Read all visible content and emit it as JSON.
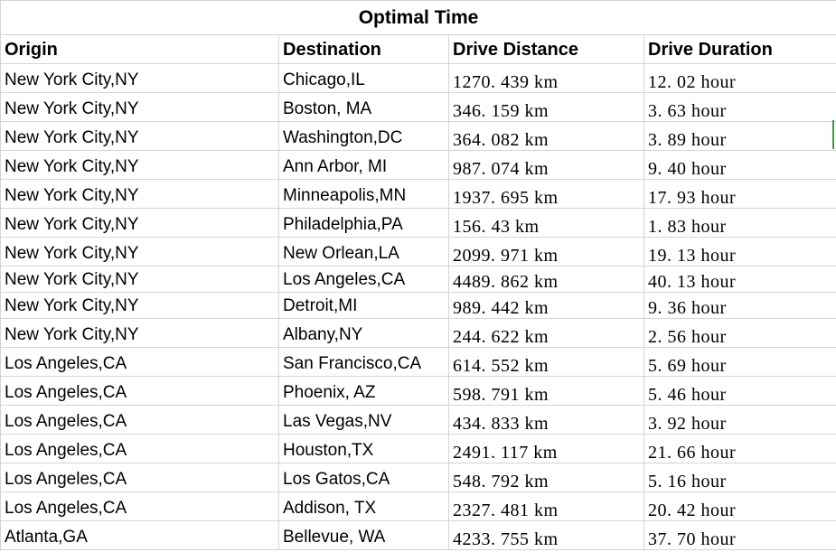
{
  "sheet": {
    "title": "Optimal Time",
    "headers": [
      "Origin",
      "Destination",
      "Drive Distance",
      "Drive Duration"
    ],
    "rows": [
      {
        "origin": "New York City,NY",
        "destination": "Chicago,IL",
        "distance": "1270. 439  km",
        "duration": "12. 02  hour"
      },
      {
        "origin": "New York City,NY",
        "destination": "Boston, MA",
        "distance": "346. 159  km",
        "duration": "3. 63  hour"
      },
      {
        "origin": "New York City,NY",
        "destination": "Washington,DC",
        "distance": "364. 082  km",
        "duration": "3. 89  hour"
      },
      {
        "origin": "New York City,NY",
        "destination": "Ann Arbor, MI",
        "distance": "987. 074  km",
        "duration": "9. 40  hour"
      },
      {
        "origin": "New York City,NY",
        "destination": "Minneapolis,MN",
        "distance": "1937. 695  km",
        "duration": "17. 93  hour"
      },
      {
        "origin": "New York City,NY",
        "destination": "Philadelphia,PA",
        "distance": "156. 43  km",
        "duration": "1. 83  hour"
      },
      {
        "origin": "New York City,NY",
        "destination": "New Orlean,LA",
        "distance": "2099. 971  km",
        "duration": "19. 13  hour"
      },
      {
        "origin": "New York City,NY",
        "destination": "Los Angeles,CA",
        "distance": "4489. 862  km",
        "duration": "40. 13  hour"
      },
      {
        "origin": "New York City,NY",
        "destination": "Detroit,MI",
        "distance": "989. 442  km",
        "duration": "9. 36  hour"
      },
      {
        "origin": "New York City,NY",
        "destination": "Albany,NY",
        "distance": "244. 622  km",
        "duration": "2. 56  hour"
      },
      {
        "origin": "Los Angeles,CA",
        "destination": "San Francisco,CA",
        "distance": "614. 552  km",
        "duration": "5. 69  hour"
      },
      {
        "origin": "Los Angeles,CA",
        "destination": "Phoenix, AZ",
        "distance": "598. 791  km",
        "duration": "5. 46  hour"
      },
      {
        "origin": "Los Angeles,CA",
        "destination": "Las Vegas,NV",
        "distance": "434. 833  km",
        "duration": "3. 92  hour"
      },
      {
        "origin": "Los Angeles,CA",
        "destination": "Houston,TX",
        "distance": "2491. 117  km",
        "duration": "21. 66  hour"
      },
      {
        "origin": "Los Angeles,CA",
        "destination": "Los Gatos,CA",
        "distance": "548. 792  km",
        "duration": "5. 16  hour"
      },
      {
        "origin": "Los Angeles,CA",
        "destination": "Addison, TX",
        "distance": "2327. 481  km",
        "duration": "20. 42  hour"
      },
      {
        "origin": "Atlanta,GA",
        "destination": "Bellevue, WA",
        "distance": "4233. 755  km",
        "duration": "37. 70  hour"
      }
    ]
  }
}
